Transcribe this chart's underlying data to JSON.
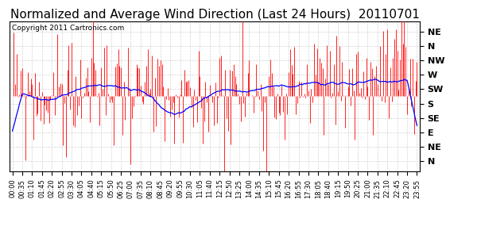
{
  "title": "Normalized and Average Wind Direction (Last 24 Hours)  20110701",
  "copyright": "Copyright 2011 Cartronics.com",
  "ytick_labels": [
    "NE",
    "N",
    "NW",
    "W",
    "SW",
    "S",
    "SE",
    "E",
    "NE",
    "N"
  ],
  "ytick_values": [
    10,
    9,
    8,
    7,
    6,
    5,
    4,
    3,
    2,
    1
  ],
  "background_color": "#ffffff",
  "red_color": "#ff0000",
  "blue_color": "#0000ff",
  "grid_color": "#c8c8c8",
  "title_fontsize": 11,
  "copyright_fontsize": 6.5,
  "ytick_fontsize": 8,
  "xtick_fontsize": 6,
  "num_points": 288,
  "bar_base": 5.5,
  "ylim_low": 0.3,
  "ylim_high": 10.7,
  "blue_window": 15
}
